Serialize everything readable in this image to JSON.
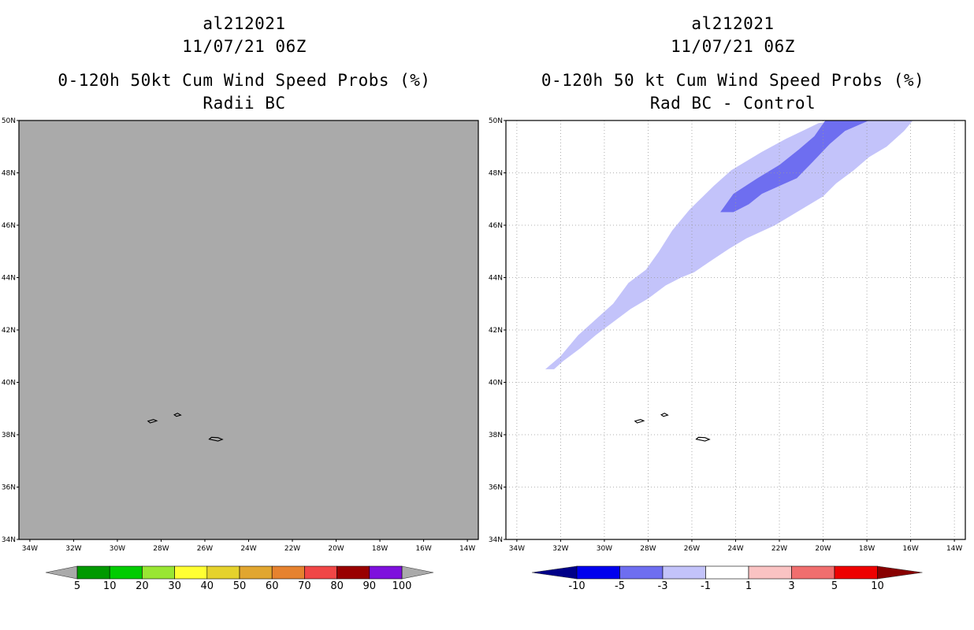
{
  "left_panel": {
    "storm_id": "al212021",
    "datetime": "11/07/21 06Z",
    "product": "0-120h 50kt Cum Wind Speed Probs (%)",
    "subtitle": "Radii BC",
    "background_color": "#aaaaaa",
    "colorbar": {
      "colors": [
        "#009900",
        "#00cc00",
        "#99e633",
        "#ffff33",
        "#e5d22d",
        "#e1a630",
        "#e6822f",
        "#f04646",
        "#990000",
        "#7e10dd"
      ],
      "labels": [
        "5",
        "10",
        "20",
        "30",
        "40",
        "50",
        "60",
        "70",
        "80",
        "90",
        "100"
      ],
      "end_color": "#aaaaaa"
    }
  },
  "right_panel": {
    "storm_id": "al212021",
    "datetime": "11/07/21 06Z",
    "product": "0-120h 50 kt Cum Wind Speed Probs (%)",
    "subtitle": "Rad BC - Control",
    "colorbar": {
      "colors": [
        "#0000ee",
        "#6e6ef0",
        "#c3c3fa",
        "#ffffff",
        "#fac3c3",
        "#f06e6e",
        "#ee0000"
      ],
      "labels": [
        "-10",
        "-5",
        "-3",
        "-1",
        "1",
        "3",
        "5",
        "10"
      ],
      "low_end_color": "#000088",
      "high_end_color": "#880000"
    },
    "difference_regions": [
      {
        "range": "-3 to -1",
        "color": "#c3c3fa"
      },
      {
        "range": "-5 to -3",
        "color": "#6e6ef0"
      }
    ]
  },
  "map": {
    "lat_labels": [
      "34N",
      "36N",
      "38N",
      "40N",
      "42N",
      "44N",
      "46N",
      "48N",
      "50N"
    ],
    "lon_labels": [
      "34W",
      "32W",
      "30W",
      "28W",
      "26W",
      "24W",
      "22W",
      "20W",
      "18W",
      "16W",
      "14W"
    ],
    "lat_range": [
      34,
      50
    ],
    "lon_range": [
      -34.5,
      -13.5
    ],
    "islands": [
      [
        [
          -28.5,
          38.45
        ],
        [
          -28.3,
          38.5
        ],
        [
          -28.2,
          38.53
        ],
        [
          -28.35,
          38.58
        ],
        [
          -28.6,
          38.52
        ],
        [
          -28.5,
          38.45
        ]
      ],
      [
        [
          -27.3,
          38.7
        ],
        [
          -27.1,
          38.75
        ],
        [
          -27.25,
          38.82
        ],
        [
          -27.4,
          38.76
        ],
        [
          -27.3,
          38.7
        ]
      ],
      [
        [
          -25.8,
          37.83
        ],
        [
          -25.4,
          37.76
        ],
        [
          -25.2,
          37.82
        ],
        [
          -25.4,
          37.89
        ],
        [
          -25.7,
          37.9
        ],
        [
          -25.8,
          37.83
        ]
      ]
    ]
  }
}
